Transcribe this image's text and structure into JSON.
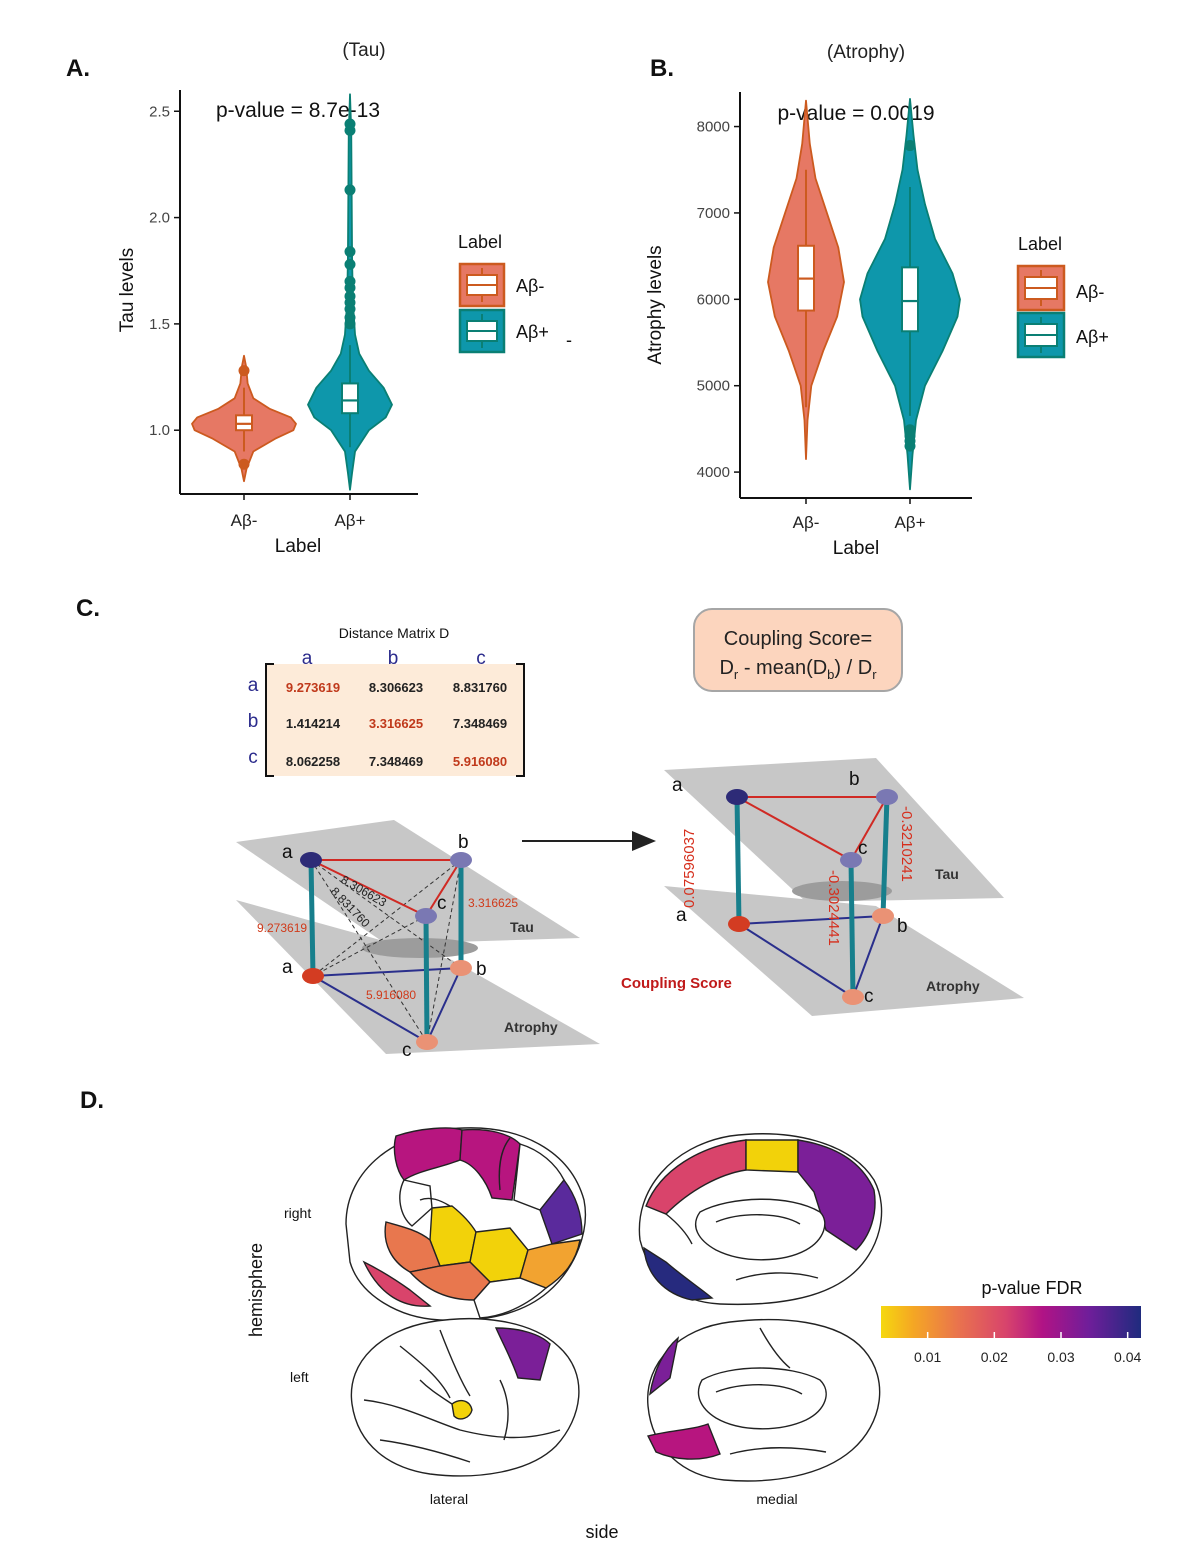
{
  "panelA": {
    "letter": "A.",
    "title": "(Tau)",
    "pvalue": "p-value = 8.7e-13",
    "ylabel": "Tau levels",
    "xlabel": "Label",
    "xticks": [
      "Aβ-",
      "Aβ+"
    ],
    "yticks": [
      "1.0",
      "1.5",
      "2.0",
      "2.5"
    ],
    "legend_title": "Label",
    "legend_items": [
      "Aβ-",
      "Aβ+"
    ],
    "stray_mark": "-"
  },
  "panelB": {
    "letter": "B.",
    "title": "(Atrophy)",
    "pvalue": "p-value = 0.0019",
    "ylabel": "Atrophy levels",
    "xlabel": "Label",
    "xticks": [
      "Aβ-",
      "Aβ+"
    ],
    "yticks": [
      "4000",
      "5000",
      "6000",
      "7000",
      "8000"
    ],
    "legend_title": "Label",
    "legend_items": [
      "Aβ-",
      "Aβ+"
    ]
  },
  "chart_data": [
    {
      "type": "violin",
      "title": "(Tau)",
      "xlabel": "Label",
      "ylabel": "Tau levels",
      "ylim": [
        0.7,
        2.6
      ],
      "categories": [
        "Aβ-",
        "Aβ+"
      ],
      "box": [
        {
          "q1": 1.0,
          "median": 1.03,
          "q3": 1.07
        },
        {
          "q1": 1.08,
          "median": 1.14,
          "q3": 1.22
        }
      ],
      "whiskers": [
        [
          0.9,
          1.2
        ],
        [
          0.92,
          1.4
        ]
      ],
      "outliers": [
        [
          0.84,
          1.28
        ],
        [
          1.5,
          1.53,
          1.57,
          1.6,
          1.63,
          1.67,
          1.7,
          1.78,
          1.84,
          2.13,
          2.41,
          2.44
        ]
      ],
      "violin_range": [
        [
          0.76,
          1.35
        ],
        [
          0.72,
          2.58
        ]
      ],
      "series_colors": [
        "#e67864",
        "#0e97ab"
      ],
      "legend": "right"
    },
    {
      "type": "violin",
      "title": "(Atrophy)",
      "xlabel": "Label",
      "ylabel": "Atrophy levels",
      "ylim": [
        3700,
        8400
      ],
      "categories": [
        "Aβ-",
        "Aβ+"
      ],
      "box": [
        {
          "q1": 5870,
          "median": 6240,
          "q3": 6620
        },
        {
          "q1": 5630,
          "median": 5980,
          "q3": 6370
        }
      ],
      "whiskers": [
        [
          4750,
          7500
        ],
        [
          4650,
          7300
        ]
      ],
      "outliers": [
        [],
        [
          7780,
          4490,
          4420,
          4360,
          4300
        ]
      ],
      "violin_range": [
        [
          4150,
          8300
        ],
        [
          3800,
          8320
        ]
      ],
      "series_colors": [
        "#e67864",
        "#0e97ab"
      ],
      "legend": "right"
    }
  ],
  "panelC": {
    "letter": "C.",
    "matrix_title": "Distance Matrix D",
    "col_heads": [
      "a",
      "b",
      "c"
    ],
    "row_heads": [
      "a",
      "b",
      "c"
    ],
    "rows": [
      [
        "9.273619",
        "8.306623",
        "8.831760"
      ],
      [
        "1.414214",
        "3.316625",
        "7.348469"
      ],
      [
        "8.062258",
        "7.348469",
        "5.916080"
      ]
    ],
    "formula_line1": "Coupling Score=",
    "formula_line2_parts": [
      "D",
      "r",
      " - mean(D",
      "b",
      ") / D",
      "r"
    ],
    "left_graph": {
      "edge_a": "9.273619",
      "edge_b": "3.316625",
      "edge_c": "5.916080",
      "diag1": "8.306623",
      "diag2": "8.831760",
      "tau_label": "Tau",
      "atrophy_label": "Atrophy",
      "nodes": [
        "a",
        "b",
        "c",
        "a",
        "b",
        "c"
      ]
    },
    "right_graph": {
      "score_a": "0.07596037",
      "score_b": "-0.3210241",
      "score_c": "-0.3024441",
      "tau_label": "Tau",
      "atrophy_label": "Atrophy",
      "coupling_label": "Coupling Score",
      "nodes": [
        "a",
        "b",
        "c",
        "a",
        "b",
        "c"
      ]
    }
  },
  "panelD": {
    "letter": "D.",
    "row_labels": [
      "right",
      "left"
    ],
    "col_labels": [
      "lateral",
      "medial"
    ],
    "ylabel": "hemisphere",
    "xlabel": "side",
    "colorbar_title": "p-value FDR",
    "colorbar_ticks": [
      "0.01",
      "0.02",
      "0.03",
      "0.04"
    ],
    "colorbar_range": [
      0.003,
      0.042
    ],
    "colors": {
      "yellow": "#f2d20a",
      "orange": "#f2a330",
      "salmon": "#e8774e",
      "pink": "#d9446b",
      "magenta": "#b7157f",
      "purple": "#7b1f98",
      "indigo": "#5a2a9c",
      "navy": "#262a7e"
    }
  }
}
